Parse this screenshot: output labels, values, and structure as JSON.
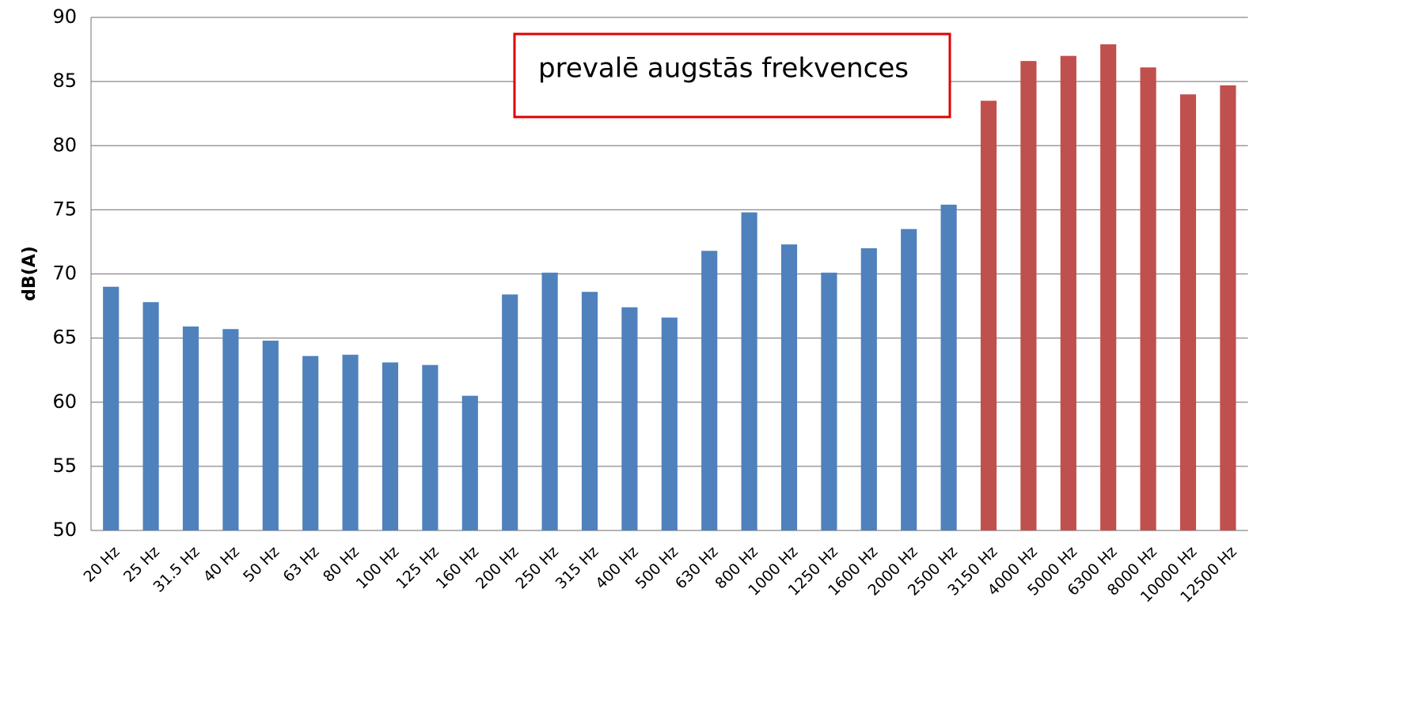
{
  "chart_data": {
    "type": "bar",
    "y_label": "dB(A)",
    "annotation": "prevalē augstās frekvences",
    "categories": [
      "20 Hz",
      "25 Hz",
      "31.5 Hz",
      "40 Hz",
      "50 Hz",
      "63 Hz",
      "80 Hz",
      "100 Hz",
      "125 Hz",
      "160 Hz",
      "200 Hz",
      "250 Hz",
      "315 Hz",
      "400 Hz",
      "500 Hz",
      "630 Hz",
      "800 Hz",
      "1000 Hz",
      "1250 Hz",
      "1600 Hz",
      "2000 Hz",
      "2500 Hz",
      "3150 Hz",
      "4000 Hz",
      "5000 Hz",
      "6300 Hz",
      "8000 Hz",
      "10000 Hz",
      "12500 Hz"
    ],
    "values": [
      69.0,
      67.8,
      65.9,
      65.7,
      64.8,
      63.6,
      63.7,
      63.1,
      62.9,
      60.5,
      68.4,
      70.1,
      68.6,
      67.4,
      66.6,
      71.8,
      74.8,
      72.3,
      70.1,
      72.0,
      73.5,
      75.4,
      83.5,
      86.6,
      87.0,
      87.9,
      86.1,
      84.0,
      84.7
    ],
    "colors": [
      "#4f81bd",
      "#4f81bd",
      "#4f81bd",
      "#4f81bd",
      "#4f81bd",
      "#4f81bd",
      "#4f81bd",
      "#4f81bd",
      "#4f81bd",
      "#4f81bd",
      "#4f81bd",
      "#4f81bd",
      "#4f81bd",
      "#4f81bd",
      "#4f81bd",
      "#4f81bd",
      "#4f81bd",
      "#4f81bd",
      "#4f81bd",
      "#4f81bd",
      "#4f81bd",
      "#4f81bd",
      "#c0504d",
      "#c0504d",
      "#c0504d",
      "#c0504d",
      "#c0504d",
      "#c0504d",
      "#c0504d"
    ],
    "ylim": [
      50,
      90
    ],
    "yticks": [
      50,
      55,
      60,
      65,
      70,
      75,
      80,
      85,
      90
    ],
    "grid": true
  }
}
